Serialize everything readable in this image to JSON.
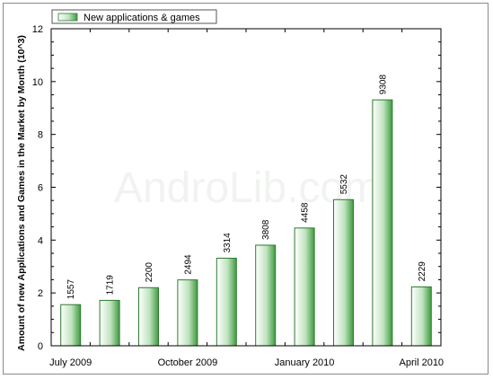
{
  "chart_data": {
    "type": "bar",
    "title": "",
    "xlabel": "",
    "ylabel": "Amount of new Applications and Games in the Market by Month (10^3)",
    "ylim": [
      0,
      12
    ],
    "yticks": [
      0,
      2,
      4,
      6,
      8,
      10,
      12
    ],
    "x_tick_labels": [
      {
        "index": 0,
        "label": "July 2009"
      },
      {
        "index": 3,
        "label": "October 2009"
      },
      {
        "index": 6,
        "label": "January 2010"
      },
      {
        "index": 9,
        "label": "April 2010"
      }
    ],
    "series": [
      {
        "name": "New applications & games",
        "values": [
          1557,
          1719,
          2200,
          2494,
          3314,
          3808,
          4458,
          5532,
          9308,
          2229
        ],
        "color": "#4caf50"
      }
    ],
    "bar_count": 10,
    "legend_placement": "top-left",
    "grid": false,
    "watermark": "AndroLib.com"
  }
}
